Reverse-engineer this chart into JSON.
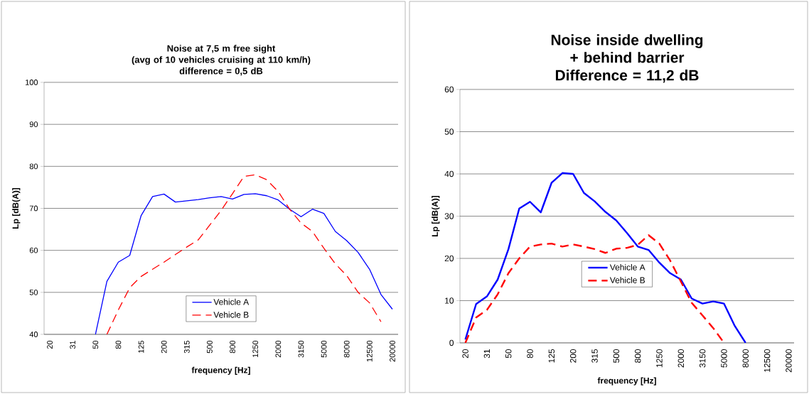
{
  "chart_data": [
    {
      "type": "line",
      "title": "Noise at 7,5 m free sight",
      "subtitle": "(avg of 10 vehicles cruising at 110 km/h)",
      "annotations": [
        "difference = 0,5 dB"
      ],
      "xlabel": "frequency [Hz]",
      "ylabel": "Lp [dB(A)]",
      "categories": [
        "20",
        null,
        "31",
        null,
        "50",
        null,
        "80",
        null,
        "125",
        null,
        "200",
        null,
        "315",
        null,
        "500",
        null,
        "800",
        null,
        "1250",
        null,
        "2000",
        null,
        "3150",
        null,
        "5000",
        null,
        "8000",
        null,
        "12500",
        null,
        "20000"
      ],
      "series": [
        {
          "name": "Vehicle A",
          "color": "#0000ff",
          "line_style": "solid",
          "values": [
            null,
            null,
            null,
            null,
            40,
            52.6,
            57.2,
            58.8,
            68.3,
            72.8,
            73.4,
            71.5,
            71.8,
            72.1,
            72.5,
            72.8,
            72.2,
            73.3,
            73.5,
            73,
            72,
            69.8,
            68,
            69.8,
            68.8,
            64.5,
            62.3,
            59.5,
            55.5,
            49.5,
            46
          ]
        },
        {
          "name": "Vehicle B",
          "color": "#ff0000",
          "line_style": "dashed",
          "values": [
            null,
            null,
            null,
            null,
            null,
            40,
            45.8,
            51.1,
            53.8,
            55.5,
            57.2,
            59,
            60.8,
            62.5,
            66,
            69.5,
            73.5,
            77.6,
            78,
            76.8,
            74,
            69.8,
            66.5,
            64.5,
            60.5,
            56.8,
            54,
            50,
            47.5,
            43,
            null
          ]
        }
      ],
      "ylim": [
        40,
        100
      ],
      "yticks": [
        40,
        50,
        60,
        70,
        80,
        90,
        100
      ],
      "grid": "y",
      "legend": "bottom",
      "marker": "none"
    },
    {
      "type": "line",
      "title": "Noise inside dwelling + behind barrier",
      "annotations": [
        "Difference = 11,2 dB"
      ],
      "xlabel": "frequency [Hz]",
      "ylabel": "Lp [dB(A)]",
      "categories": [
        "20",
        null,
        "31",
        null,
        "50",
        null,
        "80",
        null,
        "125",
        null,
        "200",
        null,
        "315",
        null,
        "500",
        null,
        "800",
        null,
        "1250",
        null,
        "2000",
        null,
        "3150",
        null,
        "5000",
        null,
        "8000",
        null,
        "12500",
        null,
        "20000"
      ],
      "series": [
        {
          "name": "Vehicle A",
          "color": "#0000ff",
          "line_style": "solid",
          "values": [
            0.8,
            9.2,
            11,
            15,
            22.2,
            31.8,
            33.4,
            30.9,
            37.9,
            40.2,
            40,
            35.5,
            33.5,
            31,
            29,
            26,
            22.8,
            22,
            19,
            16.5,
            15,
            10.5,
            9.3,
            9.8,
            9.3,
            4,
            0,
            null,
            null,
            null,
            null
          ]
        },
        {
          "name": "Vehicle B",
          "color": "#ff0000",
          "line_style": "dashed",
          "values": [
            0,
            6,
            7.8,
            11.5,
            16.5,
            20,
            22.8,
            23.3,
            23.5,
            22.8,
            23.3,
            22.8,
            22.2,
            21.3,
            22.3,
            22.5,
            23.2,
            25.5,
            23.5,
            19.5,
            14.5,
            9.5,
            6.5,
            3.5,
            0,
            null,
            null,
            null,
            null,
            null,
            null
          ]
        }
      ],
      "ylim": [
        0,
        60
      ],
      "yticks": [
        0,
        10,
        20,
        30,
        40,
        50,
        60
      ],
      "grid": "y",
      "legend": "bottom",
      "marker": "none"
    }
  ]
}
